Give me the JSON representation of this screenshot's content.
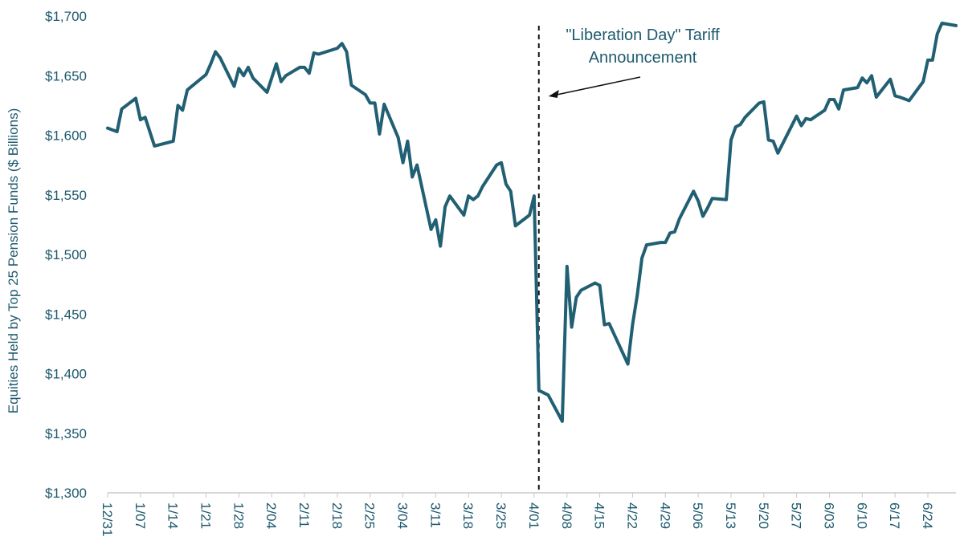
{
  "colors": {
    "line": "#215f73",
    "text": "#1e5a6e",
    "axis": "#c8c8c8",
    "annotation": "#111111"
  },
  "chart_data": {
    "type": "line",
    "title": "",
    "xlabel": "",
    "ylabel": "Equities Held by Top 25 Pension Funds ($ Billions)",
    "ylim": [
      1300,
      1700
    ],
    "xlim": [
      "2024-12-31",
      "2025-06-30"
    ],
    "y_ticks": [
      1300,
      1350,
      1400,
      1450,
      1500,
      1550,
      1600,
      1650,
      1700
    ],
    "y_tick_labels": [
      "$1,300",
      "$1,350",
      "$1,400",
      "$1,450",
      "$1,500",
      "$1,550",
      "$1,600",
      "$1,650",
      "$1,700"
    ],
    "x_ticks": [
      "2024-12-31",
      "2025-01-07",
      "2025-01-14",
      "2025-01-21",
      "2025-01-28",
      "2025-02-04",
      "2025-02-11",
      "2025-02-18",
      "2025-02-25",
      "2025-03-04",
      "2025-03-11",
      "2025-03-18",
      "2025-03-25",
      "2025-04-01",
      "2025-04-08",
      "2025-04-15",
      "2025-04-22",
      "2025-04-29",
      "2025-05-06",
      "2025-05-13",
      "2025-05-20",
      "2025-05-27",
      "2025-06-03",
      "2025-06-10",
      "2025-06-17",
      "2025-06-24"
    ],
    "x_tick_labels": [
      "12/31",
      "1/07",
      "1/14",
      "1/21",
      "1/28",
      "2/04",
      "2/11",
      "2/18",
      "2/25",
      "3/04",
      "3/11",
      "3/18",
      "3/25",
      "4/01",
      "4/08",
      "4/15",
      "4/22",
      "4/29",
      "5/06",
      "5/13",
      "5/20",
      "5/27",
      "6/03",
      "6/10",
      "6/17",
      "6/24"
    ],
    "grid": false,
    "series": [
      {
        "x": [
          "2024-12-31",
          "2025-01-02",
          "2025-01-03",
          "2025-01-06",
          "2025-01-07",
          "2025-01-08",
          "2025-01-10",
          "2025-01-13",
          "2025-01-14",
          "2025-01-15",
          "2025-01-16",
          "2025-01-17",
          "2025-01-21",
          "2025-01-22",
          "2025-01-23",
          "2025-01-24",
          "2025-01-27",
          "2025-01-28",
          "2025-01-29",
          "2025-01-30",
          "2025-01-31",
          "2025-02-03",
          "2025-02-04",
          "2025-02-05",
          "2025-02-06",
          "2025-02-07",
          "2025-02-10",
          "2025-02-11",
          "2025-02-12",
          "2025-02-13",
          "2025-02-14",
          "2025-02-18",
          "2025-02-19",
          "2025-02-20",
          "2025-02-21",
          "2025-02-24",
          "2025-02-25",
          "2025-02-26",
          "2025-02-27",
          "2025-02-28",
          "2025-03-03",
          "2025-03-04",
          "2025-03-05",
          "2025-03-06",
          "2025-03-07",
          "2025-03-10",
          "2025-03-11",
          "2025-03-12",
          "2025-03-13",
          "2025-03-14",
          "2025-03-17",
          "2025-03-18",
          "2025-03-19",
          "2025-03-20",
          "2025-03-21",
          "2025-03-24",
          "2025-03-25",
          "2025-03-26",
          "2025-03-27",
          "2025-03-28",
          "2025-03-31",
          "2025-04-01",
          "2025-04-02",
          "2025-04-03",
          "2025-04-04",
          "2025-04-07",
          "2025-04-08",
          "2025-04-09",
          "2025-04-10",
          "2025-04-11",
          "2025-04-14",
          "2025-04-15",
          "2025-04-16",
          "2025-04-17",
          "2025-04-21",
          "2025-04-22",
          "2025-04-23",
          "2025-04-24",
          "2025-04-25",
          "2025-04-28",
          "2025-04-29",
          "2025-04-30",
          "2025-05-01",
          "2025-05-02",
          "2025-05-05",
          "2025-05-06",
          "2025-05-07",
          "2025-05-08",
          "2025-05-09",
          "2025-05-12",
          "2025-05-13",
          "2025-05-14",
          "2025-05-15",
          "2025-05-16",
          "2025-05-19",
          "2025-05-20",
          "2025-05-21",
          "2025-05-22",
          "2025-05-23",
          "2025-05-27",
          "2025-05-28",
          "2025-05-29",
          "2025-05-30",
          "2025-06-02",
          "2025-06-03",
          "2025-06-04",
          "2025-06-05",
          "2025-06-06",
          "2025-06-09",
          "2025-06-10",
          "2025-06-11",
          "2025-06-12",
          "2025-06-13",
          "2025-06-16",
          "2025-06-17",
          "2025-06-18",
          "2025-06-20",
          "2025-06-23",
          "2025-06-24",
          "2025-06-25",
          "2025-06-26",
          "2025-06-27",
          "2025-06-30"
        ],
        "values": [
          1606,
          1603,
          1622,
          1631,
          1613,
          1615,
          1591,
          1594,
          1595,
          1625,
          1621,
          1638,
          1651,
          1660,
          1670,
          1665,
          1641,
          1656,
          1650,
          1657,
          1648,
          1636,
          1648,
          1660,
          1645,
          1650,
          1657,
          1657,
          1652,
          1669,
          1668,
          1673,
          1677,
          1670,
          1642,
          1634,
          1627,
          1627,
          1601,
          1626,
          1598,
          1577,
          1595,
          1565,
          1575,
          1521,
          1529,
          1507,
          1540,
          1549,
          1533,
          1549,
          1546,
          1549,
          1557,
          1575,
          1577,
          1559,
          1553,
          1524,
          1533,
          1549,
          1386,
          1384,
          1382,
          1360,
          1490,
          1439,
          1464,
          1470,
          1476,
          1474,
          1441,
          1442,
          1408,
          1441,
          1466,
          1497,
          1508,
          1510,
          1510,
          1518,
          1519,
          1530,
          1553,
          1545,
          1532,
          1539,
          1547,
          1546,
          1596,
          1607,
          1609,
          1615,
          1627,
          1628,
          1596,
          1595,
          1585,
          1616,
          1608,
          1614,
          1613,
          1621,
          1630,
          1630,
          1622,
          1638,
          1640,
          1648,
          1644,
          1650,
          1632,
          1647,
          1633,
          1632,
          1629,
          1645,
          1663,
          1663,
          1685,
          1694,
          1692
        ]
      }
    ],
    "annotations": [
      {
        "label": "\"Liberation Day\" Tariff",
        "label2": "Announcement",
        "x": "2025-04-02",
        "type": "vertical-dashed-line-with-arrow"
      }
    ]
  }
}
